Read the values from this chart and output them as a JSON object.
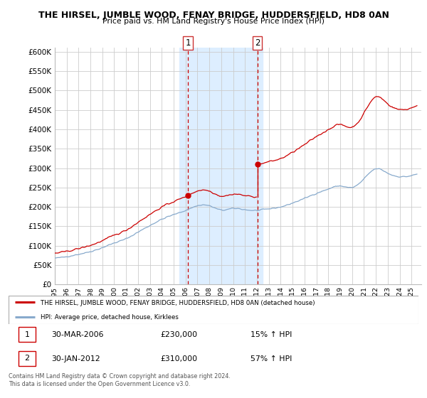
{
  "title": "THE HIRSEL, JUMBLE WOOD, FENAY BRIDGE, HUDDERSFIELD, HD8 0AN",
  "subtitle": "Price paid vs. HM Land Registry's House Price Index (HPI)",
  "ylim": [
    0,
    610000
  ],
  "yticks": [
    0,
    50000,
    100000,
    150000,
    200000,
    250000,
    300000,
    350000,
    400000,
    450000,
    500000,
    550000,
    600000
  ],
  "background_color": "#ffffff",
  "plot_bg_color": "#ffffff",
  "grid_color": "#cccccc",
  "highlight_bg_color": "#ddeeff",
  "highlight_x1": 2005.5,
  "highlight_x2": 2012.5,
  "red_line_color": "#cc0000",
  "blue_line_color": "#88aacc",
  "marker1_x_year": 2006.25,
  "marker1_y": 230000,
  "marker1_label": "1",
  "marker2_x_year": 2012.08,
  "marker2_y": 310000,
  "marker2_label": "2",
  "legend_red_label": "THE HIRSEL, JUMBLE WOOD, FENAY BRIDGE, HUDDERSFIELD, HD8 0AN (detached house)",
  "legend_blue_label": "HPI: Average price, detached house, Kirklees",
  "annotation1_date": "30-MAR-2006",
  "annotation1_price": "£230,000",
  "annotation1_hpi": "15% ↑ HPI",
  "annotation2_date": "30-JAN-2012",
  "annotation2_price": "£310,000",
  "annotation2_hpi": "57% ↑ HPI",
  "footer": "Contains HM Land Registry data © Crown copyright and database right 2024.\nThis data is licensed under the Open Government Licence v3.0.",
  "xmin": 1995.0,
  "xmax": 2025.8
}
